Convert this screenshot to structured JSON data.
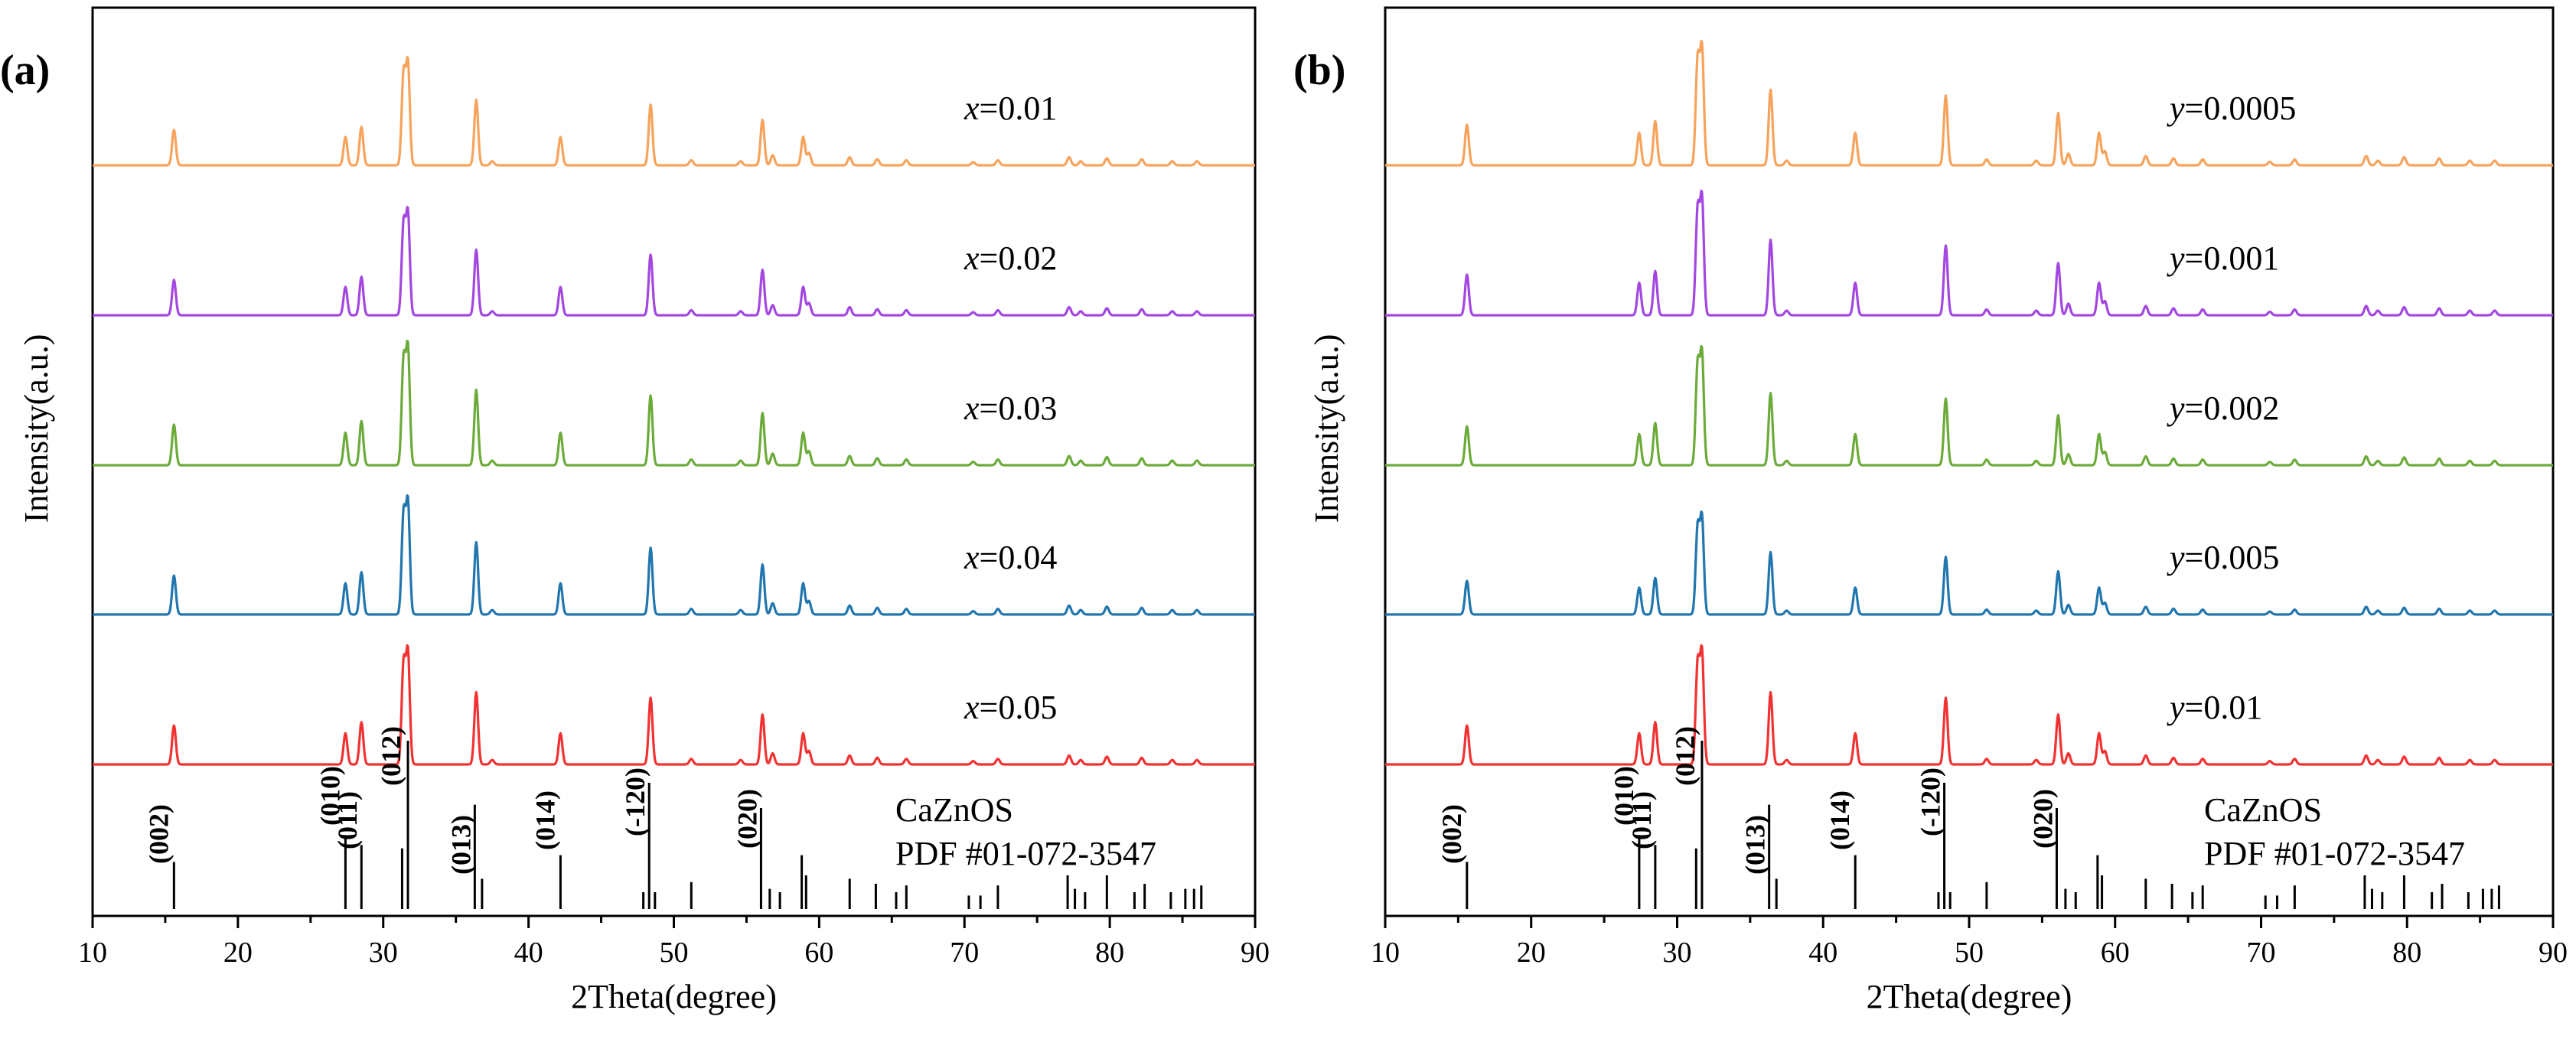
{
  "chart_data": [
    {
      "type": "line",
      "panel_label": "(a)",
      "xlabel": "2Theta(degree)",
      "ylabel": "Intensity(a.u.)",
      "xlim": [
        10,
        90
      ],
      "xticks": [
        10,
        20,
        30,
        40,
        50,
        60,
        70,
        80,
        90
      ],
      "y_ticks_shown": false,
      "series": [
        {
          "name": "x=0.01",
          "var": "x",
          "value": "=0.01",
          "color": "#F7A35C",
          "peak_scale": 1.0
        },
        {
          "name": "x=0.02",
          "var": "x",
          "value": "=0.02",
          "color": "#A347E0",
          "peak_scale": 1.0
        },
        {
          "name": "x=0.03",
          "var": "x",
          "value": "=0.03",
          "color": "#6CAB3A",
          "peak_scale": 1.15
        },
        {
          "name": "x=0.04",
          "var": "x",
          "value": "=0.04",
          "color": "#2176AE",
          "peak_scale": 1.1
        },
        {
          "name": "x=0.05",
          "var": "x",
          "value": "=0.05",
          "color": "#F23232",
          "peak_scale": 1.1
        }
      ],
      "reference": {
        "name": "CaZnOS",
        "pdf": "PDF #01-072-3547",
        "hkl_labels": [
          {
            "label": "(002)",
            "x": 15.6
          },
          {
            "label": "(010)",
            "x": 27.4
          },
          {
            "label": "(011)",
            "x": 28.6
          },
          {
            "label": "(012)",
            "x": 31.6
          },
          {
            "label": "(013)",
            "x": 36.4
          },
          {
            "label": "(014)",
            "x": 42.2
          },
          {
            "label": "(-120)",
            "x": 48.4
          },
          {
            "label": "(020)",
            "x": 56.1
          }
        ]
      }
    },
    {
      "type": "line",
      "panel_label": "(b)",
      "xlabel": "2Theta(degree)",
      "ylabel": "Intensity(a.u.)",
      "xlim": [
        10,
        90
      ],
      "xticks": [
        10,
        20,
        30,
        40,
        50,
        60,
        70,
        80,
        90
      ],
      "y_ticks_shown": false,
      "series": [
        {
          "name": "y=0.0005",
          "var": "y",
          "value": "=0.0005",
          "color": "#F7A35C",
          "peak_scale": 1.15
        },
        {
          "name": "y=0.001",
          "var": "y",
          "value": "=0.001",
          "color": "#A347E0",
          "peak_scale": 1.15
        },
        {
          "name": "y=0.002",
          "var": "y",
          "value": "=0.002",
          "color": "#6CAB3A",
          "peak_scale": 1.1
        },
        {
          "name": "y=0.005",
          "var": "y",
          "value": "=0.005",
          "color": "#2176AE",
          "peak_scale": 0.95
        },
        {
          "name": "y=0.01",
          "var": "y",
          "value": "=0.01",
          "color": "#F23232",
          "peak_scale": 1.1
        }
      ],
      "reference": {
        "name": "CaZnOS",
        "pdf": "PDF #01-072-3547",
        "hkl_labels": [
          {
            "label": "(002)",
            "x": 15.6
          },
          {
            "label": "(010)",
            "x": 27.4
          },
          {
            "label": "(011)",
            "x": 28.6
          },
          {
            "label": "(012)",
            "x": 31.6
          },
          {
            "label": "(013)",
            "x": 36.4
          },
          {
            "label": "(014)",
            "x": 42.2
          },
          {
            "label": "(-120)",
            "x": 48.4
          },
          {
            "label": "(020)",
            "x": 56.1
          }
        ]
      }
    }
  ],
  "peak_positions": [
    {
      "x": 15.6,
      "i": 0.35
    },
    {
      "x": 27.4,
      "i": 0.28
    },
    {
      "x": 28.5,
      "i": 0.38
    },
    {
      "x": 31.4,
      "i": 0.9
    },
    {
      "x": 31.7,
      "i": 1.0
    },
    {
      "x": 36.4,
      "i": 0.65
    },
    {
      "x": 37.5,
      "i": 0.04
    },
    {
      "x": 42.2,
      "i": 0.28
    },
    {
      "x": 48.4,
      "i": 0.6
    },
    {
      "x": 51.2,
      "i": 0.05
    },
    {
      "x": 54.6,
      "i": 0.04
    },
    {
      "x": 56.1,
      "i": 0.45
    },
    {
      "x": 56.8,
      "i": 0.1
    },
    {
      "x": 58.9,
      "i": 0.28
    },
    {
      "x": 59.3,
      "i": 0.12
    },
    {
      "x": 62.1,
      "i": 0.08
    },
    {
      "x": 64.0,
      "i": 0.06
    },
    {
      "x": 66.0,
      "i": 0.05
    },
    {
      "x": 70.6,
      "i": 0.03
    },
    {
      "x": 72.3,
      "i": 0.05
    },
    {
      "x": 77.2,
      "i": 0.08
    },
    {
      "x": 78.0,
      "i": 0.04
    },
    {
      "x": 79.8,
      "i": 0.07
    },
    {
      "x": 82.2,
      "i": 0.06
    },
    {
      "x": 84.3,
      "i": 0.04
    },
    {
      "x": 86.0,
      "i": 0.04
    }
  ],
  "reference_lines": [
    {
      "x": 15.6,
      "h": 0.28
    },
    {
      "x": 27.4,
      "h": 0.43
    },
    {
      "x": 28.5,
      "h": 0.38
    },
    {
      "x": 31.3,
      "h": 0.36
    },
    {
      "x": 31.7,
      "h": 1.0
    },
    {
      "x": 36.3,
      "h": 0.62
    },
    {
      "x": 36.8,
      "h": 0.18
    },
    {
      "x": 42.2,
      "h": 0.32
    },
    {
      "x": 47.9,
      "h": 0.1
    },
    {
      "x": 48.3,
      "h": 0.75
    },
    {
      "x": 48.7,
      "h": 0.1
    },
    {
      "x": 51.2,
      "h": 0.16
    },
    {
      "x": 56.0,
      "h": 0.6
    },
    {
      "x": 56.6,
      "h": 0.12
    },
    {
      "x": 57.3,
      "h": 0.1
    },
    {
      "x": 58.8,
      "h": 0.32
    },
    {
      "x": 59.1,
      "h": 0.2
    },
    {
      "x": 62.1,
      "h": 0.18
    },
    {
      "x": 63.9,
      "h": 0.15
    },
    {
      "x": 65.3,
      "h": 0.1
    },
    {
      "x": 66.0,
      "h": 0.14
    },
    {
      "x": 70.3,
      "h": 0.08
    },
    {
      "x": 71.1,
      "h": 0.08
    },
    {
      "x": 72.3,
      "h": 0.14
    },
    {
      "x": 77.1,
      "h": 0.2
    },
    {
      "x": 77.6,
      "h": 0.12
    },
    {
      "x": 78.3,
      "h": 0.1
    },
    {
      "x": 79.8,
      "h": 0.2
    },
    {
      "x": 81.7,
      "h": 0.1
    },
    {
      "x": 82.4,
      "h": 0.15
    },
    {
      "x": 84.2,
      "h": 0.1
    },
    {
      "x": 85.2,
      "h": 0.12
    },
    {
      "x": 85.8,
      "h": 0.12
    },
    {
      "x": 86.3,
      "h": 0.14
    }
  ]
}
